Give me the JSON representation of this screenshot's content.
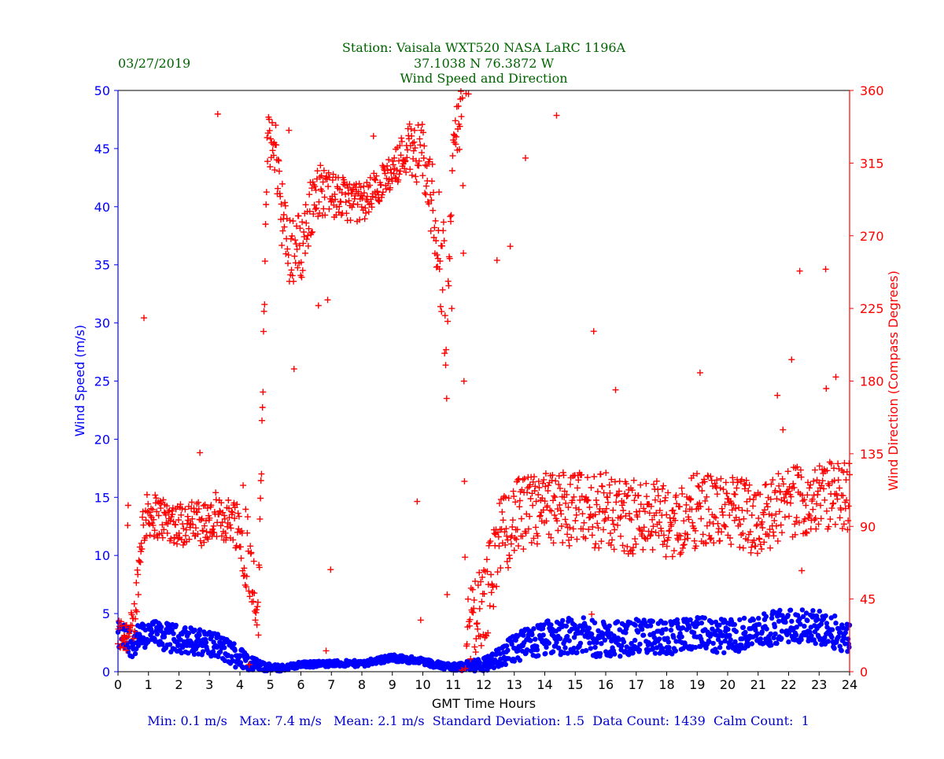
{
  "chart_data": {
    "type": "scatter",
    "title_lines": [
      "Station:  Vaisala WXT520  NASA LaRC 1196A",
      "37.1038 N 76.3872 W",
      "Wind Speed and Direction"
    ],
    "date": "03/27/2019",
    "xlabel": "GMT Time Hours",
    "ylabel_left": "Wind Speed (m/s)",
    "ylabel_right": "Wind Direction (Compass Degrees)",
    "xlim": [
      0,
      24
    ],
    "ylim_left": [
      0,
      50
    ],
    "ylim_right": [
      0,
      360
    ],
    "x_ticks": [
      "0",
      "1",
      "2",
      "3",
      "4",
      "5",
      "6",
      "7",
      "8",
      "9",
      "10",
      "11",
      "12",
      "13",
      "14",
      "15",
      "16",
      "17",
      "18",
      "19",
      "20",
      "21",
      "22",
      "23",
      "24"
    ],
    "y_left_ticks": [
      "0",
      "5",
      "10",
      "15",
      "20",
      "25",
      "30",
      "35",
      "40",
      "45",
      "50"
    ],
    "y_right_ticks": [
      "0",
      "45",
      "90",
      "135",
      "180",
      "225",
      "270",
      "315",
      "360"
    ],
    "grid": false,
    "colors": {
      "speed": "#0000ff",
      "direction": "#ff0000",
      "title": "#006400",
      "stats": "#0000cd"
    },
    "series": [
      {
        "name": "",
        "axis": "left",
        "marker": "circle",
        "color": "#0000ff",
        "profile": [
          [
            0,
            3
          ],
          [
            0.5,
            2.5
          ],
          [
            1,
            3.2
          ],
          [
            2,
            2.8
          ],
          [
            3,
            2.5
          ],
          [
            3.8,
            1.5
          ],
          [
            4.3,
            0.8
          ],
          [
            4.8,
            0.4
          ],
          [
            5.3,
            0.3
          ],
          [
            6,
            0.6
          ],
          [
            7,
            0.7
          ],
          [
            8,
            0.7
          ],
          [
            9,
            1.2
          ],
          [
            10,
            0.9
          ],
          [
            10.6,
            0.5
          ],
          [
            11,
            0.4
          ],
          [
            12,
            0.6
          ],
          [
            12.5,
            1.2
          ],
          [
            13,
            2
          ],
          [
            14,
            2.8
          ],
          [
            15,
            3.2
          ],
          [
            16,
            2.7
          ],
          [
            17,
            3
          ],
          [
            18,
            3
          ],
          [
            19,
            3.2
          ],
          [
            20,
            3
          ],
          [
            21,
            3.5
          ],
          [
            22,
            4
          ],
          [
            23,
            3.8
          ],
          [
            24,
            3
          ]
        ],
        "spread": [
          [
            0,
            1.3
          ],
          [
            3.8,
            1.1
          ],
          [
            4.5,
            0.5
          ],
          [
            5,
            0.3
          ],
          [
            6,
            0.25
          ],
          [
            10.5,
            0.3
          ],
          [
            11.5,
            0.4
          ],
          [
            12.5,
            0.8
          ],
          [
            13,
            1.3
          ],
          [
            14,
            1.6
          ],
          [
            24,
            1.4
          ]
        ]
      },
      {
        "name": "",
        "axis": "right",
        "marker": "plus",
        "color": "#ff0000",
        "profile": [
          [
            0,
            22
          ],
          [
            0.5,
            25
          ],
          [
            0.8,
            90
          ],
          [
            1,
            98
          ],
          [
            2,
            92
          ],
          [
            3,
            92
          ],
          [
            3.8,
            95
          ],
          [
            4.2,
            80
          ],
          [
            4.5,
            50
          ],
          [
            4.6,
            30
          ],
          [
            4.9,
            330
          ],
          [
            5.2,
            320
          ],
          [
            5.5,
            265
          ],
          [
            6,
            262
          ],
          [
            6.5,
            300
          ],
          [
            7,
            295
          ],
          [
            8,
            290
          ],
          [
            9,
            310
          ],
          [
            9.5,
            325
          ],
          [
            10,
            320
          ],
          [
            10.3,
            290
          ],
          [
            10.5,
            270
          ],
          [
            10.7,
            240
          ],
          [
            10.8,
            190
          ],
          [
            11,
            340
          ],
          [
            11.3,
            340
          ],
          [
            11.4,
            20
          ],
          [
            12,
            40
          ],
          [
            12.5,
            80
          ],
          [
            13,
            95
          ],
          [
            14,
            100
          ],
          [
            15,
            100
          ],
          [
            16,
            100
          ],
          [
            17,
            95
          ],
          [
            17.5,
            100
          ],
          [
            18,
            90
          ],
          [
            19,
            100
          ],
          [
            20,
            100
          ],
          [
            21,
            95
          ],
          [
            22,
            105
          ],
          [
            23,
            108
          ],
          [
            24,
            110
          ]
        ],
        "spread": [
          [
            0,
            12
          ],
          [
            0.8,
            14
          ],
          [
            3.8,
            14
          ],
          [
            4.2,
            30
          ],
          [
            4.6,
            15
          ],
          [
            4.9,
            14
          ],
          [
            5.4,
            25
          ],
          [
            6,
            22
          ],
          [
            7,
            14
          ],
          [
            9,
            10
          ],
          [
            10.3,
            25
          ],
          [
            10.8,
            40
          ],
          [
            11,
            15
          ],
          [
            11.4,
            25
          ],
          [
            12,
            28
          ],
          [
            13,
            24
          ],
          [
            24,
            22
          ]
        ]
      }
    ],
    "stats_line": "Min: 0.1 m/s   Max: 7.4 m/s   Mean: 2.1 m/s  Standard Deviation: 1.5  Data Count: 1439  Calm Count:  1"
  }
}
